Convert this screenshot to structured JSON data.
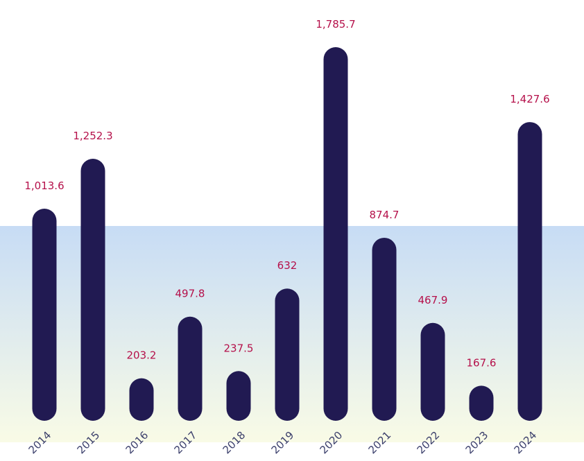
{
  "chart_data": {
    "type": "bar",
    "categories": [
      "2014",
      "2015",
      "2016",
      "2017",
      "2018",
      "2019",
      "2020",
      "2021",
      "2022",
      "2023",
      "2024"
    ],
    "values": [
      1013.6,
      1252.3,
      203.2,
      497.8,
      237.5,
      632,
      1785.7,
      874.7,
      467.9,
      167.6,
      1427.6
    ],
    "value_labels": [
      "1,013.6",
      "1,252.3",
      "203.2",
      "497.8",
      "237.5",
      "632",
      "1,785.7",
      "874.7",
      "467.9",
      "167.6",
      "1,427.6"
    ],
    "ylim": [
      0,
      1785.7
    ],
    "grid": false,
    "legend": "none"
  },
  "colors": {
    "bar": "#211a52",
    "value_label": "#b5104a",
    "tick_label": "#3b3f6b",
    "band_top": "#c7dcf5",
    "band_bottom": "#f9fbe6"
  }
}
